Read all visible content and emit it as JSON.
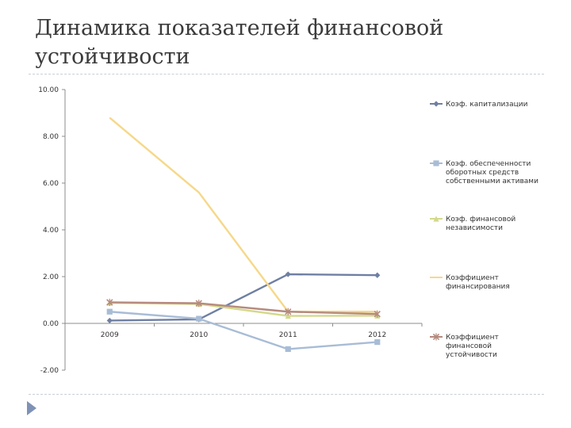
{
  "slide": {
    "title": "Динамика показателей финансовой устойчивости"
  },
  "chart_data": {
    "type": "line",
    "categories": [
      "2009",
      "2010",
      "2011",
      "2012"
    ],
    "ylim": [
      -2,
      10
    ],
    "yticks": [
      "10.00",
      "8.00",
      "6.00",
      "4.00",
      "2.00",
      "0.00",
      "-2.00"
    ],
    "ytick_values": [
      10,
      8,
      6,
      4,
      2,
      0,
      -2
    ],
    "grid": false,
    "legend_position": "right",
    "series": [
      {
        "name": "Коэф. капитализации",
        "values": [
          0.12,
          0.17,
          2.1,
          2.06
        ],
        "color": "#6f7fa3",
        "marker": "diamond"
      },
      {
        "name": "Коэф. обеспеченности оборотных средств собственными активами",
        "label_lines": [
          "Коэф. обеспеченности",
          "оборотных средств",
          "собственными активами"
        ],
        "values": [
          0.5,
          0.2,
          -1.1,
          -0.8
        ],
        "color": "#a8bcd6",
        "marker": "square"
      },
      {
        "name": "Коэф. финансовой независимости",
        "label_lines": [
          "Коэф. финансовой",
          "независимости"
        ],
        "values": [
          0.88,
          0.83,
          0.32,
          0.33
        ],
        "color": "#d3d98a",
        "marker": "triangle"
      },
      {
        "name": "Коэффициент финансирования",
        "label_lines": [
          "Коэффициент",
          "финансирования"
        ],
        "values": [
          8.8,
          5.6,
          0.5,
          0.5
        ],
        "color": "#f6d889",
        "marker": "none"
      },
      {
        "name": "Коэффициент финансовой устойчивости",
        "label_lines": [
          "Коэффициент",
          "финансовой",
          "устойчивости"
        ],
        "values": [
          0.9,
          0.86,
          0.5,
          0.4
        ],
        "color": "#b68a7d",
        "marker": "x"
      }
    ]
  }
}
